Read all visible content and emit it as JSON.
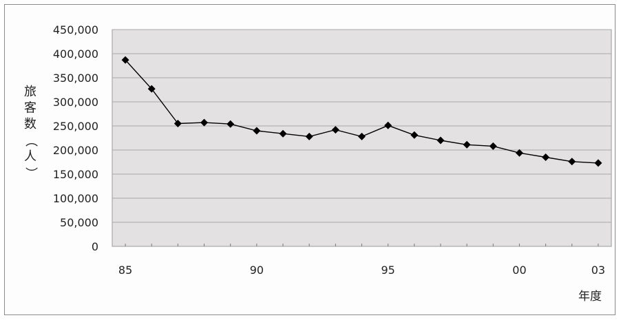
{
  "chart_data": {
    "type": "line",
    "title": "",
    "xlabel": "年度",
    "ylabel": "旅客数（人）",
    "ylim": [
      0,
      450000
    ],
    "x": [
      1985,
      1986,
      1987,
      1988,
      1989,
      1990,
      1991,
      1992,
      1993,
      1994,
      1995,
      1996,
      1997,
      1998,
      1999,
      2000,
      2001,
      2002,
      2003
    ],
    "x_tick_values": [
      1985,
      1990,
      1995,
      2000,
      2003
    ],
    "x_tick_labels": [
      "85",
      "90",
      "95",
      "00",
      "03"
    ],
    "y_tick_values": [
      0,
      50000,
      100000,
      150000,
      200000,
      250000,
      300000,
      350000,
      400000,
      450000
    ],
    "y_tick_labels": [
      "0",
      "50,000",
      "100,000",
      "150,000",
      "200,000",
      "250,000",
      "300,000",
      "350,000",
      "400,000",
      "450,000"
    ],
    "series": [
      {
        "values": [
          387000,
          327000,
          255000,
          257000,
          254000,
          240000,
          234000,
          228000,
          242000,
          228000,
          251000,
          231000,
          220000,
          211000,
          208000,
          194000,
          185000,
          176000,
          173000
        ],
        "color": "#000000",
        "marker": "diamond"
      }
    ],
    "grid": true,
    "legend": "none",
    "plot_background": "#e3e1e1"
  }
}
